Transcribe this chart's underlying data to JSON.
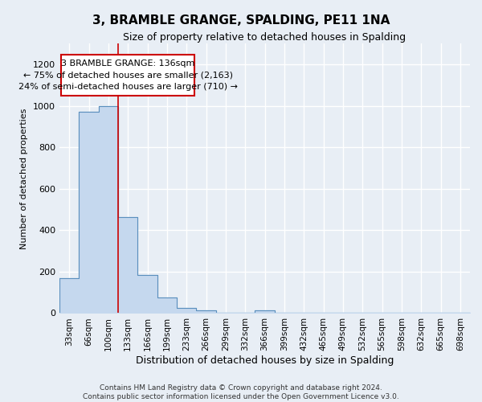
{
  "title": "3, BRAMBLE GRANGE, SPALDING, PE11 1NA",
  "subtitle": "Size of property relative to detached houses in Spalding",
  "xlabel": "Distribution of detached houses by size in Spalding",
  "ylabel": "Number of detached properties",
  "categories": [
    "33sqm",
    "66sqm",
    "100sqm",
    "133sqm",
    "166sqm",
    "199sqm",
    "233sqm",
    "266sqm",
    "299sqm",
    "332sqm",
    "366sqm",
    "399sqm",
    "432sqm",
    "465sqm",
    "499sqm",
    "532sqm",
    "565sqm",
    "598sqm",
    "632sqm",
    "665sqm",
    "698sqm"
  ],
  "values": [
    170,
    970,
    1000,
    465,
    185,
    75,
    25,
    15,
    0,
    0,
    15,
    0,
    0,
    0,
    0,
    0,
    0,
    0,
    0,
    0,
    0
  ],
  "bar_color": "#c5d8ee",
  "bar_edge_color": "#5a8fbd",
  "annotation_box_text": "3 BRAMBLE GRANGE: 136sqm\n← 75% of detached houses are smaller (2,163)\n24% of semi-detached houses are larger (710) →",
  "annotation_box_color": "#ffffff",
  "annotation_box_edge_color": "#cc0000",
  "property_line_x": 3.0,
  "ylim": [
    0,
    1300
  ],
  "yticks": [
    0,
    200,
    400,
    600,
    800,
    1000,
    1200
  ],
  "background_color": "#e8eef5",
  "grid_color": "#ffffff",
  "footer": "Contains HM Land Registry data © Crown copyright and database right 2024.\nContains public sector information licensed under the Open Government Licence v3.0."
}
